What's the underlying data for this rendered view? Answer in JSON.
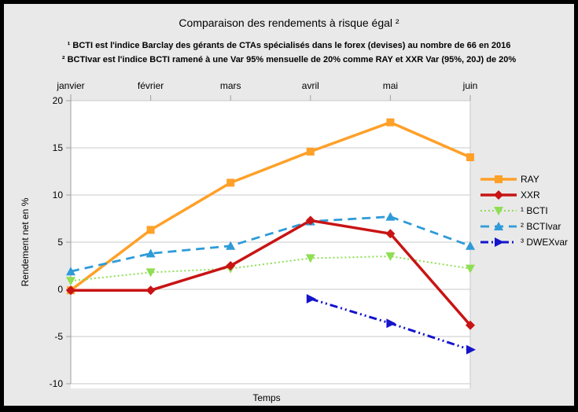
{
  "chart": {
    "title": "Comparaison des rendements à risque égal ²",
    "footnote1": "¹ BCTI est l'indice Barclay des gérants de CTAs spécialisés dans le forex (devises) au nombre de 66 en 2016",
    "footnote2": "² BCTIvar est l'indice BCTI ramené à une Var 95% mensuelle de 20% comme RAY et XXR Var (95%, 20J) de 20%",
    "x_title": "Temps",
    "y_title": "Rendement net en %"
  },
  "chart_data": {
    "type": "line",
    "categories": [
      "janvier",
      "février",
      "mars",
      "avril",
      "mai",
      "juin"
    ],
    "yticks": [
      20,
      15,
      10,
      5,
      0,
      -5,
      -10
    ],
    "ylim": [
      -10,
      20
    ],
    "grid": true,
    "legend_position": "right",
    "series": [
      {
        "name": "RAY",
        "color": "#FFA028",
        "marker": "square",
        "dash": "solid",
        "width": 3.5,
        "values": [
          -0.1,
          6.3,
          11.3,
          14.6,
          17.7,
          14.0
        ]
      },
      {
        "name": "XXR",
        "color": "#C81414",
        "marker": "diamond",
        "dash": "solid",
        "width": 3.5,
        "values": [
          -0.1,
          -0.1,
          2.5,
          7.3,
          5.9,
          -3.8
        ]
      },
      {
        "name": "¹ BCTI",
        "color": "#8FDE53",
        "marker": "triangle-down",
        "dash": "dotted",
        "width": 2,
        "values": [
          0.9,
          1.8,
          2.2,
          3.3,
          3.5,
          2.2
        ]
      },
      {
        "name": "² BCTIvar",
        "color": "#2E9BD8",
        "marker": "triangle-up",
        "dash": "dashed",
        "width": 2.8,
        "values": [
          1.9,
          3.8,
          4.6,
          7.2,
          7.7,
          4.6
        ]
      },
      {
        "name": "³ DWEXvar",
        "color": "#1414CC",
        "marker": "arrow-right",
        "dash": "dash-dot-dot",
        "width": 3,
        "values": [
          null,
          null,
          null,
          -1.0,
          -3.6,
          -6.4
        ]
      }
    ],
    "colors": {
      "background": "#E9E9E9",
      "plot": "#FFFFFF",
      "gridline": "#C9C9C9",
      "axis": "#A0A0A0"
    }
  }
}
